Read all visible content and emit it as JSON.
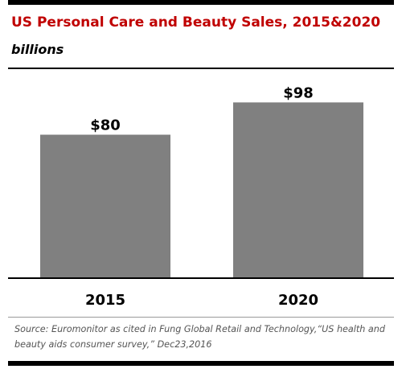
{
  "header": {
    "title": "US Personal Care and Beauty Sales, 2015&2020",
    "subtitle": "billions"
  },
  "footer": {
    "source": "Source: Euromonitor as cited in Fung Global Retail and Technology,“US health and beauty aids consumer survey,” Dec23,2016"
  },
  "colors": {
    "title": "#c00000",
    "bar": "#808080",
    "axis": "#000000"
  },
  "chart_data": {
    "type": "bar",
    "title": "US Personal Care and Beauty Sales, 2015&2020",
    "subtitle": "billions",
    "categories": [
      "2015",
      "2020"
    ],
    "values": [
      80,
      98
    ],
    "data_labels": [
      "$80",
      "$98"
    ],
    "ylim": [
      0,
      104
    ],
    "grid": false,
    "legend": "none"
  }
}
